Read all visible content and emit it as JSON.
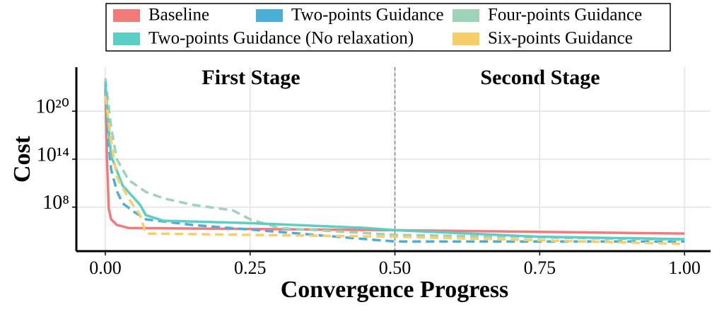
{
  "chart_data": {
    "type": "line",
    "xlabel": "Convergence Progress",
    "ylabel": "Cost",
    "xlim": [
      -0.05,
      1.045
    ],
    "xticks": [
      {
        "value": 0,
        "label": "0.00"
      },
      {
        "value": 0.25,
        "label": "0.25"
      },
      {
        "value": 0.5,
        "label": "0.50"
      },
      {
        "value": 0.75,
        "label": "0.75"
      },
      {
        "value": 1,
        "label": "1.00"
      }
    ],
    "ylim": [
      316,
      3.16e+25
    ],
    "log_y": true,
    "yticks": [
      {
        "value": 100000000.0,
        "label": "10⁸"
      },
      {
        "value": 100000000000000.0,
        "label": "10¹⁴"
      },
      {
        "value": 1e+20,
        "label": "10²⁰"
      }
    ],
    "grid": true,
    "annotations": [
      {
        "text": "First Stage"
      },
      {
        "text": "Second Stage"
      }
    ],
    "stage_boundary": 0.5,
    "series": [
      {
        "name": "Baseline",
        "color": "#f47a7a",
        "dashed": false,
        "x": [
          0,
          0.003,
          0.006,
          0.01,
          0.02,
          0.04,
          0.5,
          1.0
        ],
        "values": [
          6e+22,
          40000000000000.0,
          60000000.0,
          3000000.0,
          600000.0,
          250000.0,
          130000.0,
          50000.0
        ]
      },
      {
        "name": "Two-points Guidance",
        "color": "#4aafd6",
        "dashed": true,
        "x": [
          0,
          0.005,
          0.01,
          0.02,
          0.03,
          0.05,
          0.07,
          0.15,
          0.3,
          0.5,
          1.0
        ],
        "values": [
          2e+23,
          1.6e+16,
          5000000000000.0,
          10000000000.0,
          300000000.0,
          25000000.0,
          3000000.0,
          600000.0,
          80000.0,
          5000.0,
          5000.0
        ]
      },
      {
        "name": "Four-points Guidance",
        "color": "#9fd3b9",
        "dashed": true,
        "x": [
          0,
          0.01,
          0.02,
          0.04,
          0.07,
          0.1,
          0.15,
          0.22,
          0.25,
          0.3,
          0.5,
          1.0
        ],
        "values": [
          1.3e+24,
          1e+18,
          100000000000000.0,
          250000000000.0,
          8000000000.0,
          1300000000.0,
          200000000.0,
          40000000.0,
          3000000.0,
          250000.0,
          35000.0,
          8000.0
        ]
      },
      {
        "name": "Two-points Guidance (No relaxation)",
        "color": "#5bcfc5",
        "dashed": false,
        "x": [
          0,
          0.005,
          0.01,
          0.03,
          0.06,
          0.07,
          0.1,
          0.25,
          0.45,
          0.5,
          0.75,
          1.0
        ],
        "values": [
          5e+23,
          2.5e+18,
          250000000000000.0,
          50000000000.0,
          200000000.0,
          10000000.0,
          2000000.0,
          1000000.0,
          250000.0,
          130000.0,
          20000.0,
          10000.0
        ]
      },
      {
        "name": "Six-points Guidance",
        "color": "#f7cf6a",
        "dashed": true,
        "x": [
          0,
          0.01,
          0.02,
          0.04,
          0.06,
          0.07,
          0.5,
          1.0
        ],
        "values": [
          8e+21,
          1.6e+16,
          600000000000.0,
          1300000000.0,
          10000000.0,
          50000.0,
          20000.0,
          2500.0
        ]
      }
    ]
  }
}
